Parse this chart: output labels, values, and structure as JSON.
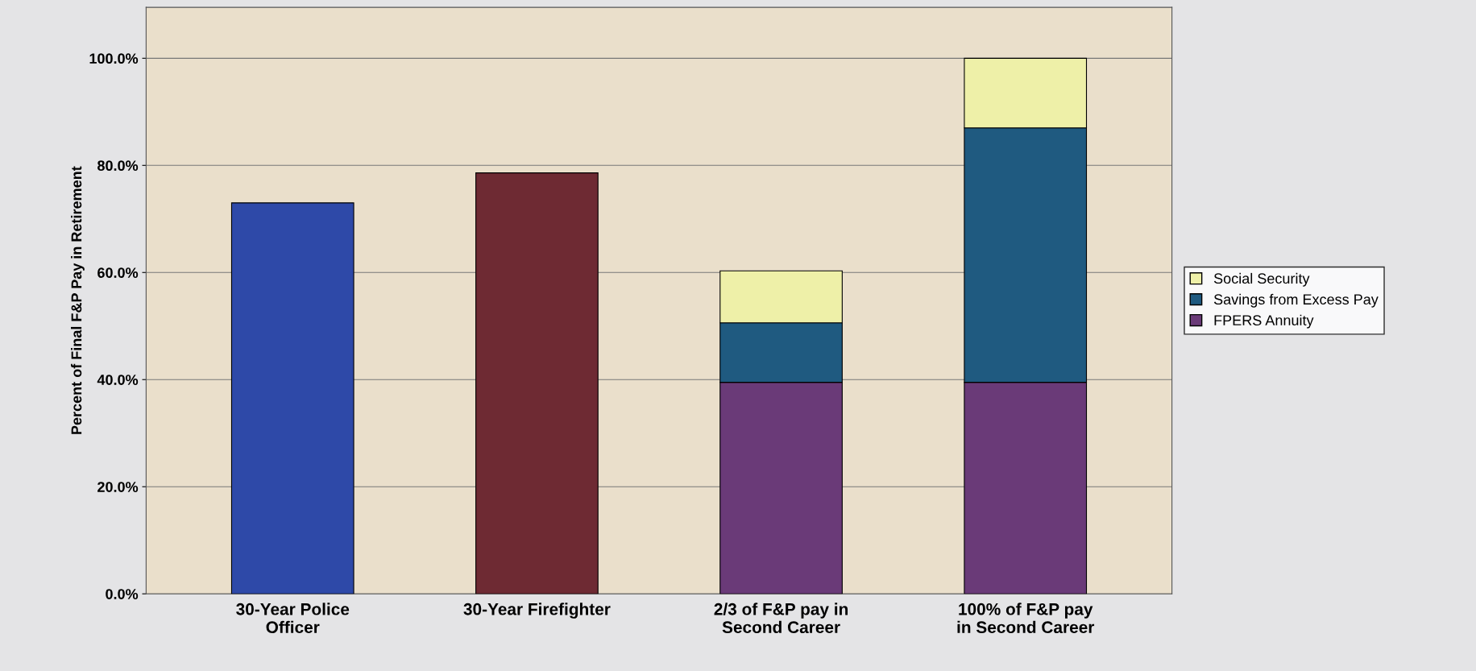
{
  "chart_data": {
    "type": "bar",
    "ylabel": "Percent of Final F&P Pay in Retirement",
    "categories": [
      "30-Year Police\nOfficer",
      "30-Year Firefighter",
      "2/3 of F&P pay in\nSecond Career",
      "100% of F&P pay\nin Second Career"
    ],
    "series": [
      {
        "name": "FPERS Annuity",
        "color": "#6a3a78",
        "colors": [
          "#2e49a8",
          "#6e2a33",
          "#6a3a78",
          "#6a3a78"
        ],
        "values": [
          73.0,
          78.6,
          39.5,
          39.5
        ]
      },
      {
        "name": "Savings from Excess Pay",
        "color": "#1f5a80",
        "values": [
          null,
          null,
          11.1,
          47.5
        ]
      },
      {
        "name": "Social Security",
        "color": "#eef0a8",
        "values": [
          null,
          null,
          9.7,
          13.0
        ]
      }
    ],
    "stacked": true,
    "ylim": [
      0,
      109.5
    ],
    "yticks": [
      {
        "value": 0,
        "label": "0.0%"
      },
      {
        "value": 20,
        "label": "20.0%"
      },
      {
        "value": 40,
        "label": "40.0%"
      },
      {
        "value": 60,
        "label": "60.0%"
      },
      {
        "value": 80,
        "label": "80.0%"
      },
      {
        "value": 100,
        "label": "100.0%"
      }
    ],
    "grid": "y",
    "legend": "right"
  }
}
